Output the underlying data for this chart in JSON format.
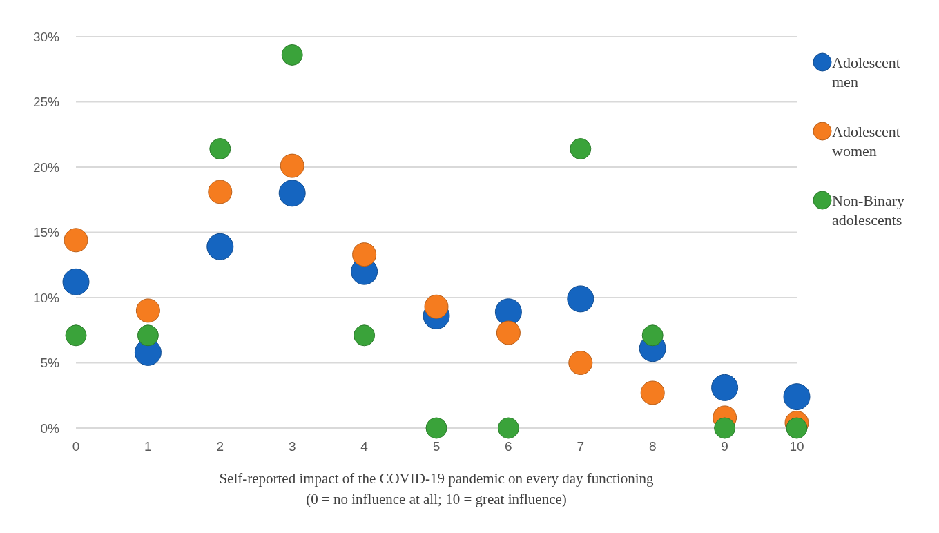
{
  "chart_data": {
    "type": "scatter",
    "xlabel": "Self-reported impact of the COVID-19 pandemic on every day functioning\n(0 = no influence at all; 10 = great influence)",
    "x": [
      0,
      1,
      2,
      3,
      4,
      5,
      6,
      7,
      8,
      9,
      10
    ],
    "xlim": [
      0,
      10
    ],
    "xticks": [
      0,
      1,
      2,
      3,
      4,
      5,
      6,
      7,
      8,
      9,
      10
    ],
    "ylim": [
      0,
      30
    ],
    "yticks": [
      {
        "value": 0,
        "label": "0%"
      },
      {
        "value": 5,
        "label": "5%"
      },
      {
        "value": 10,
        "label": "10%"
      },
      {
        "value": 15,
        "label": "15%"
      },
      {
        "value": 20,
        "label": "20%"
      },
      {
        "value": 25,
        "label": "25%"
      },
      {
        "value": 30,
        "label": "30%"
      }
    ],
    "grid": "y",
    "legend": "right",
    "marker": "circle",
    "series": [
      {
        "name": "Adolescent men",
        "color": "#1565c0",
        "values": [
          11.2,
          5.8,
          13.9,
          18.0,
          12.0,
          8.6,
          8.9,
          9.9,
          6.1,
          3.1,
          2.4
        ]
      },
      {
        "name": "Adolescent women",
        "color": "#f57c1f",
        "values": [
          14.4,
          9.0,
          18.1,
          20.1,
          13.3,
          9.3,
          7.3,
          5.0,
          2.7,
          0.8,
          0.4
        ]
      },
      {
        "name": "Non-Binary adolescents",
        "color": "#3aa33a",
        "values": [
          7.1,
          7.1,
          21.4,
          28.6,
          7.1,
          0,
          0,
          21.4,
          7.1,
          0,
          0
        ]
      }
    ]
  }
}
